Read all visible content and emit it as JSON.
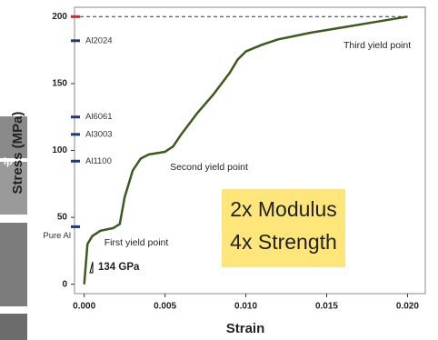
{
  "chart_data": {
    "type": "line",
    "x_label": "Strain",
    "y_label": "Stress (MPa)",
    "x": [
      0,
      0.0002,
      0.0005,
      0.001,
      0.0018,
      0.0022,
      0.0025,
      0.003,
      0.0035,
      0.004,
      0.005,
      0.0055,
      0.006,
      0.007,
      0.008,
      0.009,
      0.0095,
      0.01,
      0.011,
      0.012,
      0.014,
      0.016,
      0.018,
      0.02
    ],
    "series": [
      {
        "color": "#3d5a1e",
        "values": [
          0,
          30,
          36,
          40,
          42,
          45,
          65,
          85,
          94,
          97,
          99,
          103,
          112,
          128,
          142,
          158,
          168,
          174,
          179,
          183,
          188,
          192,
          196,
          200
        ]
      }
    ],
    "xlim": [
      -0.0006,
      0.0211
    ],
    "ylim": [
      -7,
      207
    ],
    "xticks": [
      {
        "value": 0,
        "label": "0.000"
      },
      {
        "value": 0.005,
        "label": "0.005"
      },
      {
        "value": 0.01,
        "label": "0.010"
      },
      {
        "value": 0.015,
        "label": "0.015"
      },
      {
        "value": 0.02,
        "label": "0.020"
      }
    ],
    "yticks": [
      0,
      50,
      100,
      150,
      200
    ],
    "max_line": {
      "value": 200,
      "color": "#e02020"
    },
    "reference_lines": [
      {
        "name": "Al2024",
        "value": 182,
        "color": "#1f3a7a"
      },
      {
        "name": "Al6061",
        "value": 125,
        "color": "#1f3a7a"
      },
      {
        "name": "Al3003",
        "value": 112,
        "color": "#1f3a7a"
      },
      {
        "name": "Al1100",
        "value": 92,
        "color": "#1f3a7a"
      },
      {
        "name": "Pure Al",
        "value": 43,
        "color": "#1f3a7a"
      }
    ],
    "annotations": [
      "First yield point",
      "Second yield point",
      "Third yield point",
      "134 GPa"
    ],
    "callout": [
      "2x Modulus",
      "4x Strength"
    ],
    "photo_label": "ip"
  }
}
